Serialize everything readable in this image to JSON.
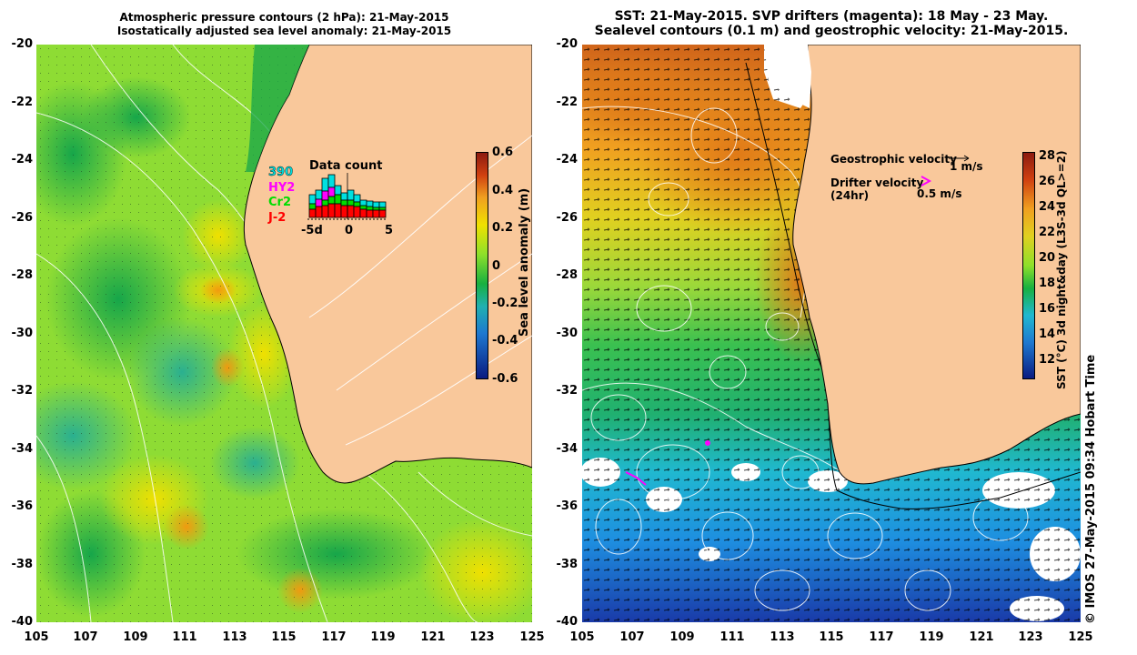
{
  "left_panel": {
    "title_line1": "Atmospheric pressure contours (2 hPa): 21-May-2015",
    "title_line2": "Isostatically adjusted sea level anomaly: 21-May-2015",
    "y_ticks": [
      "-20",
      "-22",
      "-24",
      "-26",
      "-28",
      "-30",
      "-32",
      "-34",
      "-36",
      "-38",
      "-40"
    ],
    "x_ticks": [
      "105",
      "107",
      "109",
      "111",
      "113",
      "115",
      "117",
      "119",
      "121",
      "123",
      "125"
    ],
    "colorbar": {
      "ticks": [
        "0.6",
        "0.4",
        "0.2",
        "0",
        "-0.2",
        "-0.4",
        "-0.6"
      ],
      "label": "Sea level anomaly (m)"
    },
    "data_count": {
      "title": "Data count",
      "satellites": [
        {
          "name": "390",
          "color": "#00e0e0"
        },
        {
          "name": "HY2",
          "color": "#ff00ff"
        },
        {
          "name": "Cr2",
          "color": "#00dd00"
        },
        {
          "name": "J-2",
          "color": "#ff0000"
        }
      ],
      "x_ticks": [
        "-5d",
        "0",
        "5"
      ]
    }
  },
  "right_panel": {
    "title_line1": "SST: 21-May-2015. SVP drifters (magenta): 18 May - 23 May.",
    "title_line2": "Sealevel contours (0.1 m) and geostrophic velocity: 21-May-2015.",
    "y_ticks": [
      "-20",
      "-22",
      "-24",
      "-26",
      "-28",
      "-30",
      "-32",
      "-34",
      "-36",
      "-38",
      "-40"
    ],
    "x_ticks": [
      "105",
      "107",
      "109",
      "111",
      "113",
      "115",
      "117",
      "119",
      "121",
      "123",
      "125"
    ],
    "legend": {
      "geo_label": "Geostrophic velocity",
      "geo_scale": "1 m/s",
      "drifter_label_1": "Drifter velocity",
      "drifter_label_2": "(24hr)",
      "drifter_scale": "0.5 m/s"
    },
    "colorbar": {
      "ticks": [
        "28",
        "26",
        "24",
        "22",
        "20",
        "18",
        "16",
        "14",
        "12"
      ],
      "label": "SST (°C) 3d night&day (L3S-3d QL>=2)"
    }
  },
  "credit": "© IMOS 27-May-2015 09:34 Hobart Time",
  "colors": {
    "land": "#f9c89b",
    "sla_mid": "#8ee02a",
    "sst_warm": "#e0781a",
    "sst_cool": "#1e8cdc"
  }
}
